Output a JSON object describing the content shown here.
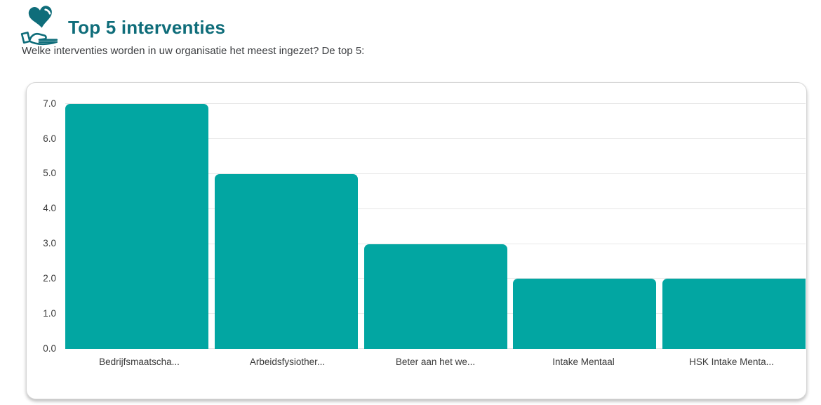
{
  "header": {
    "icon": "heart-in-hand-icon",
    "title": "Top 5 interventies",
    "question": "Welke interventies worden in uw organisatie het meest ingezet? De top 5:"
  },
  "colors": {
    "accent_dark": "#0f6d7a",
    "bar": "#02a6a2",
    "gridline": "#e8e8e8",
    "text": "#3d3f42"
  },
  "chart_data": {
    "type": "bar",
    "title": "Top 5 interventies",
    "categories": [
      "Bedrijfsmaatscha...",
      "Arbeidsfysiother...",
      "Beter aan het we...",
      "Intake Mentaal",
      "HSK Intake Menta..."
    ],
    "values": [
      7,
      5,
      3,
      2,
      2
    ],
    "xlabel": "",
    "ylabel": "",
    "ylim": [
      0,
      7
    ],
    "ytick_labels": [
      "0.0",
      "1.0",
      "2.0",
      "3.0",
      "4.0",
      "5.0",
      "6.0",
      "7.0"
    ],
    "grid": "horizontal",
    "legend": "none",
    "bar_color": "#02a6a2"
  }
}
